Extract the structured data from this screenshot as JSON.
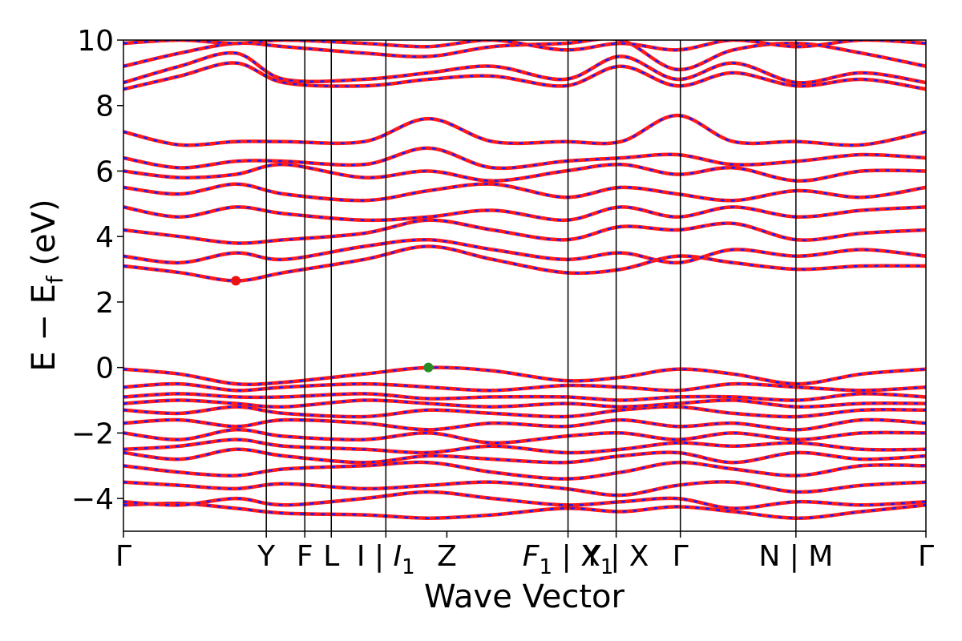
{
  "chart_data": {
    "type": "line",
    "title": "",
    "xlabel": "Wave Vector",
    "ylabel": "E − E",
    "ylabel_subscript": "f",
    "ylabel_unit": " (eV)",
    "ylim": [
      -5,
      10
    ],
    "yticks": [
      -4,
      -2,
      0,
      2,
      4,
      6,
      8,
      10
    ],
    "ytick_labels": [
      "−4",
      "−2",
      "0",
      "2",
      "4",
      "6",
      "8",
      "10"
    ],
    "grid": false,
    "legend": "none",
    "kpath": {
      "range": [
        0,
        1
      ],
      "points": [
        {
          "label": "Γ",
          "pos": 0.0
        },
        {
          "label": "Y",
          "pos": 0.178
        },
        {
          "label": "F",
          "pos": 0.226
        },
        {
          "label": "L",
          "pos": 0.259
        },
        {
          "label": "I | ",
          "label_sub": "",
          "label_italic": "I",
          "label_italic_sub": "1",
          "pos": 0.327
        },
        {
          "label": "Z",
          "pos": 0.403
        },
        {
          "label_italic": "F",
          "label_italic_sub": "1",
          "label": " | X",
          "label_tail_sub": "1",
          "pos": 0.554
        },
        {
          "label": "Y | X",
          "pos": 0.614
        },
        {
          "label": "Γ",
          "pos": 0.694
        },
        {
          "label": "N | M",
          "pos": 0.838
        },
        {
          "label": "Γ",
          "pos": 1.0
        }
      ],
      "vlines": [
        0.178,
        0.226,
        0.259,
        0.327,
        0.554,
        0.614,
        0.694,
        0.838
      ]
    },
    "markers": [
      {
        "name": "CBM",
        "k": 0.14,
        "E": 2.65,
        "color": "#ee1111"
      },
      {
        "name": "VBM",
        "k": 0.38,
        "E": 0.0,
        "color": "#2a8a2a"
      }
    ],
    "series_style": {
      "line_color": "#ff1a1a",
      "dash_color": "#1a1aff"
    },
    "bands": [
      {
        "k": [
          0,
          0.07,
          0.14,
          0.2,
          0.3,
          0.38,
          0.46,
          0.55,
          0.62,
          0.69,
          0.76,
          0.84,
          0.92,
          1.0
        ],
        "E": [
          -4.2,
          -4.15,
          -4.3,
          -4.45,
          -4.5,
          -4.6,
          -4.5,
          -4.3,
          -4.4,
          -4.25,
          -4.4,
          -4.6,
          -4.4,
          -4.2
        ]
      },
      {
        "k": [
          0,
          0.07,
          0.14,
          0.2,
          0.3,
          0.38,
          0.46,
          0.55,
          0.62,
          0.69,
          0.76,
          0.84,
          0.92,
          1.0
        ],
        "E": [
          -4.1,
          -4.2,
          -4.0,
          -4.2,
          -4.0,
          -3.8,
          -4.0,
          -4.2,
          -4.1,
          -4.0,
          -4.3,
          -4.1,
          -4.2,
          -4.1
        ]
      },
      {
        "k": [
          0,
          0.07,
          0.14,
          0.2,
          0.3,
          0.38,
          0.46,
          0.55,
          0.62,
          0.69,
          0.76,
          0.84,
          0.92,
          1.0
        ],
        "E": [
          -3.5,
          -3.6,
          -3.7,
          -3.55,
          -3.7,
          -3.6,
          -3.5,
          -3.7,
          -3.9,
          -3.6,
          -3.5,
          -3.8,
          -3.6,
          -3.5
        ]
      },
      {
        "k": [
          0,
          0.07,
          0.14,
          0.2,
          0.3,
          0.38,
          0.46,
          0.55,
          0.62,
          0.69,
          0.76,
          0.84,
          0.92,
          1.0
        ],
        "E": [
          -3.0,
          -3.2,
          -3.3,
          -3.1,
          -3.0,
          -2.9,
          -3.2,
          -3.4,
          -3.2,
          -2.9,
          -3.1,
          -3.3,
          -3.0,
          -3.0
        ]
      },
      {
        "k": [
          0,
          0.07,
          0.14,
          0.2,
          0.3,
          0.38,
          0.46,
          0.55,
          0.62,
          0.69,
          0.76,
          0.84,
          0.92,
          1.0
        ],
        "E": [
          -2.6,
          -2.8,
          -2.5,
          -2.7,
          -2.9,
          -2.7,
          -2.8,
          -2.9,
          -2.7,
          -2.6,
          -2.9,
          -2.6,
          -2.8,
          -2.7
        ]
      },
      {
        "k": [
          0,
          0.07,
          0.14,
          0.2,
          0.3,
          0.38,
          0.46,
          0.55,
          0.62,
          0.69,
          0.76,
          0.84,
          0.92,
          1.0
        ],
        "E": [
          -2.5,
          -2.4,
          -2.2,
          -2.4,
          -2.5,
          -2.6,
          -2.4,
          -2.6,
          -2.5,
          -2.3,
          -2.4,
          -2.3,
          -2.5,
          -2.5
        ]
      },
      {
        "k": [
          0,
          0.07,
          0.14,
          0.2,
          0.3,
          0.38,
          0.46,
          0.55,
          0.62,
          0.69,
          0.76,
          0.84,
          0.92,
          1.0
        ],
        "E": [
          -2.0,
          -2.2,
          -1.9,
          -2.1,
          -2.2,
          -2.0,
          -2.3,
          -2.1,
          -2.0,
          -2.2,
          -2.0,
          -2.2,
          -2.0,
          -2.0
        ]
      },
      {
        "k": [
          0,
          0.07,
          0.14,
          0.2,
          0.3,
          0.38,
          0.46,
          0.55,
          0.62,
          0.69,
          0.76,
          0.84,
          0.92,
          1.0
        ],
        "E": [
          -1.7,
          -1.6,
          -1.8,
          -1.6,
          -1.7,
          -1.9,
          -1.7,
          -1.8,
          -1.6,
          -1.8,
          -1.7,
          -1.9,
          -1.6,
          -1.7
        ]
      },
      {
        "k": [
          0,
          0.07,
          0.14,
          0.2,
          0.3,
          0.38,
          0.46,
          0.55,
          0.62,
          0.69,
          0.76,
          0.84,
          0.92,
          1.0
        ],
        "E": [
          -1.3,
          -1.4,
          -1.2,
          -1.4,
          -1.5,
          -1.3,
          -1.4,
          -1.5,
          -1.3,
          -1.2,
          -1.4,
          -1.5,
          -1.3,
          -1.3
        ]
      },
      {
        "k": [
          0,
          0.07,
          0.14,
          0.2,
          0.3,
          0.38,
          0.46,
          0.55,
          0.62,
          0.69,
          0.76,
          0.84,
          0.92,
          1.0
        ],
        "E": [
          -1.1,
          -1.0,
          -1.1,
          -1.2,
          -1.0,
          -1.1,
          -1.2,
          -1.1,
          -1.2,
          -1.1,
          -1.0,
          -1.2,
          -1.1,
          -1.1
        ]
      },
      {
        "k": [
          0,
          0.07,
          0.14,
          0.2,
          0.3,
          0.38,
          0.46,
          0.55,
          0.62,
          0.69,
          0.76,
          0.84,
          0.92,
          1.0
        ],
        "E": [
          -0.9,
          -0.8,
          -0.9,
          -0.9,
          -0.8,
          -0.95,
          -0.9,
          -0.9,
          -1.0,
          -0.9,
          -0.9,
          -1.0,
          -0.8,
          -0.9
        ]
      },
      {
        "k": [
          0,
          0.07,
          0.14,
          0.2,
          0.3,
          0.38,
          0.46,
          0.55,
          0.62,
          0.69,
          0.76,
          0.84,
          0.92,
          1.0
        ],
        "E": [
          -0.6,
          -0.5,
          -0.7,
          -0.6,
          -0.5,
          -0.6,
          -0.7,
          -0.55,
          -0.6,
          -0.7,
          -0.5,
          -0.6,
          -0.7,
          -0.6
        ]
      },
      {
        "k": [
          0,
          0.07,
          0.14,
          0.2,
          0.3,
          0.38,
          0.46,
          0.55,
          0.62,
          0.69,
          0.76,
          0.84,
          0.92,
          1.0
        ],
        "E": [
          -0.05,
          -0.2,
          -0.5,
          -0.45,
          -0.2,
          0.0,
          -0.1,
          -0.4,
          -0.3,
          -0.05,
          -0.2,
          -0.5,
          -0.2,
          -0.05
        ]
      },
      {
        "k": [
          0,
          0.07,
          0.14,
          0.2,
          0.3,
          0.38,
          0.46,
          0.55,
          0.62,
          0.69,
          0.76,
          0.84,
          0.92,
          1.0
        ],
        "E": [
          3.1,
          2.9,
          2.65,
          2.9,
          3.3,
          3.7,
          3.3,
          2.9,
          3.0,
          3.4,
          3.2,
          3.0,
          3.1,
          3.1
        ]
      },
      {
        "k": [
          0,
          0.07,
          0.14,
          0.2,
          0.3,
          0.38,
          0.46,
          0.55,
          0.62,
          0.69,
          0.76,
          0.84,
          0.92,
          1.0
        ],
        "E": [
          3.4,
          3.2,
          3.5,
          3.3,
          3.7,
          3.9,
          3.6,
          3.3,
          3.5,
          3.2,
          3.6,
          3.4,
          3.6,
          3.4
        ]
      },
      {
        "k": [
          0,
          0.07,
          0.14,
          0.2,
          0.3,
          0.38,
          0.46,
          0.55,
          0.62,
          0.69,
          0.76,
          0.84,
          0.92,
          1.0
        ],
        "E": [
          4.2,
          4.0,
          3.8,
          3.9,
          4.1,
          4.5,
          4.2,
          3.9,
          4.3,
          4.2,
          4.4,
          3.9,
          4.1,
          4.2
        ]
      },
      {
        "k": [
          0,
          0.07,
          0.14,
          0.2,
          0.3,
          0.38,
          0.46,
          0.55,
          0.62,
          0.69,
          0.76,
          0.84,
          0.92,
          1.0
        ],
        "E": [
          4.9,
          4.6,
          4.9,
          4.7,
          4.5,
          4.6,
          4.8,
          4.5,
          4.9,
          4.6,
          4.9,
          4.6,
          4.8,
          4.9
        ]
      },
      {
        "k": [
          0,
          0.07,
          0.14,
          0.2,
          0.3,
          0.38,
          0.46,
          0.55,
          0.62,
          0.69,
          0.76,
          0.84,
          0.92,
          1.0
        ],
        "E": [
          5.5,
          5.3,
          5.6,
          5.3,
          5.1,
          5.4,
          5.6,
          5.2,
          5.5,
          5.3,
          5.1,
          5.4,
          5.2,
          5.5
        ]
      },
      {
        "k": [
          0,
          0.07,
          0.14,
          0.2,
          0.3,
          0.38,
          0.46,
          0.55,
          0.62,
          0.69,
          0.76,
          0.84,
          0.92,
          1.0
        ],
        "E": [
          6.0,
          5.8,
          5.9,
          6.2,
          5.8,
          6.0,
          5.7,
          6.0,
          6.2,
          5.9,
          6.1,
          5.7,
          6.0,
          6.0
        ]
      },
      {
        "k": [
          0,
          0.07,
          0.14,
          0.2,
          0.3,
          0.38,
          0.46,
          0.55,
          0.62,
          0.69,
          0.76,
          0.84,
          0.92,
          1.0
        ],
        "E": [
          6.4,
          6.1,
          6.3,
          6.3,
          6.2,
          6.7,
          6.1,
          6.3,
          6.4,
          6.5,
          6.2,
          6.3,
          6.5,
          6.4
        ]
      },
      {
        "k": [
          0,
          0.07,
          0.14,
          0.2,
          0.3,
          0.38,
          0.46,
          0.55,
          0.62,
          0.69,
          0.76,
          0.84,
          0.92,
          1.0
        ],
        "E": [
          7.2,
          6.8,
          6.9,
          6.9,
          6.9,
          7.6,
          6.9,
          6.9,
          6.9,
          7.7,
          6.9,
          6.9,
          6.8,
          7.2
        ]
      },
      {
        "k": [
          0,
          0.07,
          0.14,
          0.2,
          0.3,
          0.38,
          0.46,
          0.55,
          0.62,
          0.69,
          0.76,
          0.84,
          0.92,
          1.0
        ],
        "E": [
          8.5,
          8.9,
          9.3,
          8.7,
          8.6,
          8.8,
          8.9,
          8.6,
          9.2,
          8.6,
          9.0,
          8.6,
          8.8,
          8.5
        ]
      },
      {
        "k": [
          0,
          0.07,
          0.14,
          0.2,
          0.3,
          0.38,
          0.46,
          0.55,
          0.62,
          0.69,
          0.76,
          0.84,
          0.92,
          1.0
        ],
        "E": [
          8.7,
          9.2,
          9.6,
          8.8,
          8.8,
          9.0,
          9.2,
          8.8,
          9.5,
          8.8,
          9.3,
          8.7,
          9.0,
          8.7
        ]
      },
      {
        "k": [
          0,
          0.07,
          0.14,
          0.2,
          0.3,
          0.38,
          0.46,
          0.55,
          0.62,
          0.69,
          0.76,
          0.84,
          0.92,
          1.0
        ],
        "E": [
          9.2,
          9.6,
          9.9,
          9.8,
          9.6,
          9.5,
          9.8,
          9.9,
          10.0,
          9.1,
          9.7,
          9.9,
          9.6,
          9.2
        ]
      },
      {
        "k": [
          0,
          0.07,
          0.14,
          0.2,
          0.3,
          0.38,
          0.46,
          0.55,
          0.62,
          0.69,
          0.76,
          0.84,
          0.92,
          1.0
        ],
        "E": [
          9.9,
          10.0,
          9.9,
          10.0,
          9.9,
          9.8,
          10.0,
          9.7,
          9.9,
          9.7,
          10.0,
          9.8,
          10.0,
          9.9
        ]
      }
    ]
  }
}
